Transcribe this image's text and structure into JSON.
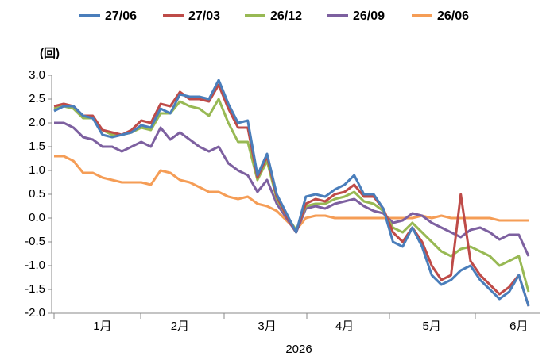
{
  "chart_data": {
    "type": "line",
    "y_label": "(回)",
    "x_label": "2026",
    "categories": [
      null,
      null,
      null,
      null,
      null,
      "1月",
      null,
      null,
      null,
      null,
      null,
      null,
      null,
      "2月",
      null,
      null,
      null,
      null,
      null,
      null,
      null,
      null,
      "3月",
      null,
      null,
      null,
      null,
      null,
      null,
      null,
      "4月",
      null,
      null,
      null,
      null,
      null,
      null,
      null,
      null,
      "5月",
      null,
      null,
      null,
      null,
      null,
      null,
      null,
      null,
      "6月",
      null
    ],
    "series": [
      {
        "name": "27/06",
        "color": "#4a7ebb",
        "values": [
          2.25,
          2.35,
          2.35,
          2.15,
          2.1,
          1.75,
          1.7,
          1.75,
          1.8,
          1.95,
          1.9,
          2.3,
          2.2,
          2.6,
          2.55,
          2.55,
          2.5,
          2.9,
          2.4,
          2.0,
          2.05,
          0.9,
          1.35,
          0.5,
          0.1,
          -0.3,
          0.45,
          0.5,
          0.45,
          0.6,
          0.7,
          0.9,
          0.5,
          0.5,
          0.2,
          -0.5,
          -0.6,
          -0.2,
          -0.6,
          -1.2,
          -1.4,
          -1.3,
          -1.1,
          -1.0,
          -1.3,
          -1.5,
          -1.7,
          -1.55,
          -1.2,
          -1.85
        ]
      },
      {
        "name": "27/03",
        "color": "#be4b48",
        "values": [
          2.35,
          2.4,
          2.35,
          2.15,
          2.15,
          1.85,
          1.8,
          1.75,
          1.85,
          2.05,
          2.0,
          2.4,
          2.35,
          2.65,
          2.5,
          2.5,
          2.45,
          2.8,
          2.3,
          1.9,
          1.9,
          0.85,
          1.3,
          0.45,
          0.05,
          -0.3,
          0.3,
          0.4,
          0.35,
          0.5,
          0.55,
          0.7,
          0.45,
          0.45,
          0.2,
          -0.3,
          -0.5,
          -0.2,
          -0.5,
          -1.0,
          -1.3,
          -1.2,
          0.5,
          -0.9,
          -1.2,
          -1.4,
          -1.6,
          -1.45,
          -1.2,
          -1.85
        ]
      },
      {
        "name": "26/12",
        "color": "#98b954",
        "values": [
          2.3,
          2.35,
          2.3,
          2.1,
          2.1,
          1.85,
          1.75,
          1.75,
          1.8,
          1.9,
          1.85,
          2.2,
          2.2,
          2.45,
          2.35,
          2.3,
          2.15,
          2.5,
          2.0,
          1.6,
          1.6,
          0.8,
          1.2,
          0.4,
          0.05,
          -0.25,
          0.25,
          0.3,
          0.3,
          0.4,
          0.45,
          0.55,
          0.35,
          0.3,
          0.15,
          -0.2,
          -0.3,
          -0.1,
          -0.3,
          -0.5,
          -0.7,
          -0.8,
          -0.65,
          -0.6,
          -0.7,
          -0.8,
          -1.0,
          -0.9,
          -0.8,
          -1.55
        ]
      },
      {
        "name": "26/09",
        "color": "#7d60a0",
        "values": [
          2.0,
          2.0,
          1.9,
          1.7,
          1.65,
          1.5,
          1.5,
          1.4,
          1.5,
          1.6,
          1.5,
          1.9,
          1.65,
          1.8,
          1.65,
          1.5,
          1.4,
          1.5,
          1.15,
          1.0,
          0.9,
          0.55,
          0.8,
          0.3,
          0.0,
          -0.3,
          0.2,
          0.25,
          0.2,
          0.3,
          0.35,
          0.4,
          0.25,
          0.15,
          0.1,
          -0.1,
          -0.05,
          0.1,
          0.05,
          -0.1,
          -0.2,
          -0.3,
          -0.4,
          -0.25,
          -0.2,
          -0.3,
          -0.45,
          -0.35,
          -0.35,
          -0.8
        ]
      },
      {
        "name": "26/06",
        "color": "#f59d56",
        "values": [
          1.3,
          1.3,
          1.2,
          0.95,
          0.95,
          0.85,
          0.8,
          0.75,
          0.75,
          0.75,
          0.7,
          1.0,
          0.95,
          0.8,
          0.75,
          0.65,
          0.55,
          0.55,
          0.45,
          0.4,
          0.45,
          0.3,
          0.25,
          0.15,
          -0.05,
          -0.25,
          0.0,
          0.05,
          0.05,
          0.0,
          0.0,
          0.0,
          0.0,
          0.0,
          0.0,
          0.0,
          0.0,
          0.0,
          0.05,
          0.0,
          0.05,
          0.0,
          0.0,
          0.0,
          0.0,
          0.0,
          -0.05,
          -0.05,
          -0.05,
          -0.05
        ]
      }
    ],
    "ylim": [
      -2,
      3
    ],
    "yticks": [
      {
        "value": -2,
        "label": "-2.0"
      },
      -1.5,
      {
        "value": -1,
        "label": "-1.0"
      },
      -0.5,
      {
        "value": 0,
        "label": "0.0"
      },
      0.5,
      {
        "value": 1,
        "label": "1.0"
      },
      1.5,
      {
        "value": 2,
        "label": "2.0"
      },
      2.5,
      {
        "value": 3,
        "label": "3.0"
      }
    ],
    "legend": "top"
  }
}
